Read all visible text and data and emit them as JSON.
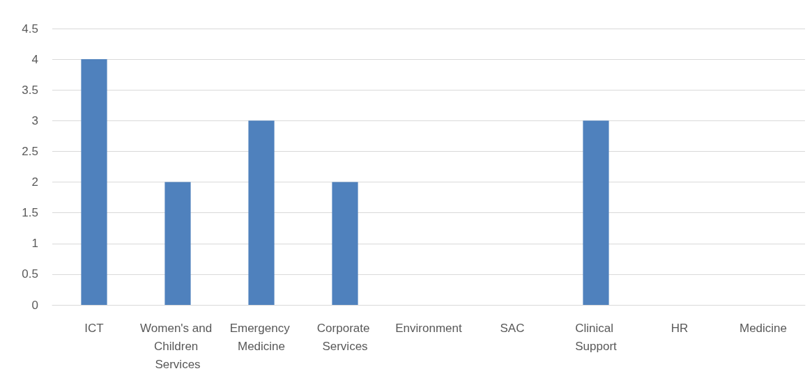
{
  "chart_data": {
    "type": "bar",
    "categories": [
      "ICT",
      "Women's and Children Services",
      "Emergency Medicine",
      "Corporate Services",
      "Environment",
      "SAC",
      "Clinical Support",
      "HR",
      "Medicine"
    ],
    "values": [
      4,
      2,
      3,
      2,
      0,
      0,
      3,
      0,
      0
    ],
    "color": "#4f81bd",
    "ylim": [
      0,
      4.5
    ],
    "yticks": [
      0,
      0.5,
      1,
      1.5,
      2,
      2.5,
      3,
      3.5,
      4,
      4.5
    ],
    "grid": "y"
  }
}
